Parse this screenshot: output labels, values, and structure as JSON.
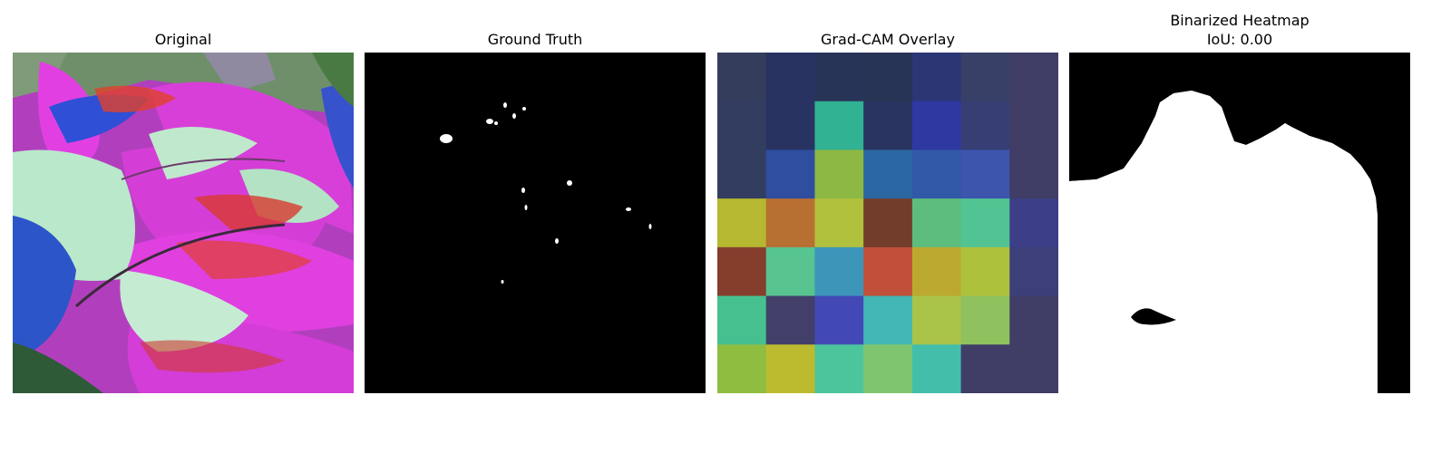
{
  "panels": [
    {
      "title": "Original"
    },
    {
      "title": "Ground Truth"
    },
    {
      "title": "Grad-CAM Overlay"
    },
    {
      "title": "Binarized Heatmap",
      "subtitle": "IoU: 0.00"
    }
  ],
  "gradcam_grid": {
    "rows": 7,
    "cols": 7,
    "colors": [
      [
        "#353d5c",
        "#293362",
        "#283457",
        "#283456",
        "#2c3675",
        "#384068",
        "#403d67"
      ],
      [
        "#333d5f",
        "#293361",
        "#31b292",
        "#293560",
        "#2e38a0",
        "#363e73",
        "#403d67"
      ],
      [
        "#333d5f",
        "#2f4ea0",
        "#8db843",
        "#2b68a3",
        "#3258a8",
        "#3d55ad",
        "#403d67"
      ],
      [
        "#b5b830",
        "#b86f32",
        "#b1c13e",
        "#733d2c",
        "#5dbd7e",
        "#52c392",
        "#3c3f87"
      ],
      [
        "#863e2c",
        "#58c490",
        "#3d96b9",
        "#c05039",
        "#bca92f",
        "#aec13c",
        "#3c3f7a"
      ],
      [
        "#46c08f",
        "#423f6a",
        "#4249b6",
        "#42b7b6",
        "#a9c448",
        "#8fc15e",
        "#403d67"
      ],
      [
        "#8fbd40",
        "#bcbb2f",
        "#4cc59c",
        "#7fc56f",
        "#43beab",
        "#403d67",
        "#403d67"
      ]
    ]
  }
}
